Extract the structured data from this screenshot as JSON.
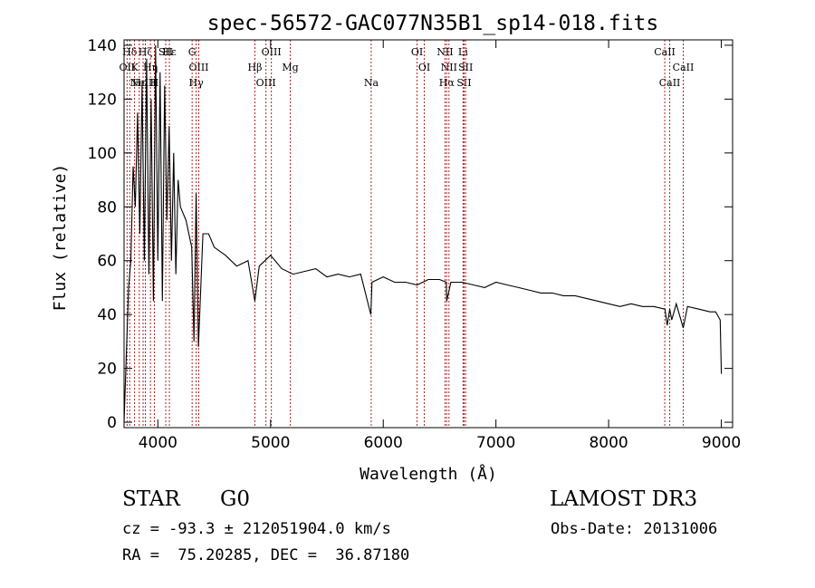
{
  "chart_data": {
    "type": "line",
    "title": "spec-56572-GAC077N35B1_sp14-018.fits",
    "xlabel": "Wavelength (Å)",
    "ylabel": "Flux (relative)",
    "xlim": [
      3700,
      9100
    ],
    "ylim": [
      -2,
      142
    ],
    "xticks": [
      4000,
      5000,
      6000,
      7000,
      8000,
      9000
    ],
    "yticks": [
      0,
      20,
      40,
      60,
      80,
      100,
      120,
      140
    ],
    "grid": false,
    "series": [
      {
        "name": "flux",
        "x": [
          3700,
          3720,
          3740,
          3760,
          3780,
          3800,
          3820,
          3840,
          3860,
          3880,
          3900,
          3920,
          3940,
          3960,
          3980,
          4000,
          4020,
          4040,
          4060,
          4080,
          4100,
          4120,
          4140,
          4160,
          4180,
          4200,
          4250,
          4300,
          4320,
          4340,
          4360,
          4400,
          4450,
          4500,
          4600,
          4700,
          4800,
          4860,
          4900,
          5000,
          5100,
          5200,
          5300,
          5400,
          5500,
          5600,
          5700,
          5800,
          5890,
          5900,
          6000,
          6100,
          6200,
          6300,
          6400,
          6500,
          6560,
          6563,
          6600,
          6700,
          6800,
          6900,
          7000,
          7100,
          7200,
          7300,
          7400,
          7500,
          7600,
          7700,
          7800,
          7900,
          8000,
          8100,
          8200,
          8300,
          8400,
          8500,
          8520,
          8542,
          8560,
          8600,
          8662,
          8700,
          8800,
          8900,
          8950,
          8990,
          9000
        ],
        "values": [
          0,
          25,
          50,
          60,
          95,
          80,
          115,
          70,
          125,
          60,
          135,
          55,
          120,
          45,
          140,
          60,
          130,
          45,
          125,
          75,
          110,
          60,
          100,
          55,
          90,
          80,
          75,
          65,
          30,
          85,
          28,
          70,
          70,
          65,
          62,
          58,
          60,
          45,
          58,
          62,
          57,
          55,
          56,
          57,
          54,
          55,
          54,
          55,
          40,
          52,
          54,
          52,
          52,
          51,
          53,
          53,
          52,
          45,
          52,
          52,
          51,
          50,
          52,
          51,
          50,
          49,
          48,
          48,
          47,
          47,
          46,
          45,
          44,
          43,
          44,
          43,
          43,
          42,
          36,
          42,
          38,
          44,
          35,
          43,
          42,
          41,
          41,
          38,
          18
        ]
      }
    ],
    "lines": [
      {
        "label": "Hδ",
        "x": 3750
      },
      {
        "label": "K",
        "x": 3793
      },
      {
        "label": "Hε",
        "x": 3835
      },
      {
        "label": "Hζ",
        "x": 3889
      },
      {
        "label": "Hη",
        "x": 3934
      },
      {
        "label": "H",
        "x": 3969
      },
      {
        "label": "Hε",
        "x": 4102
      },
      {
        "label": "OII",
        "x": 3727
      },
      {
        "label": "NeIII",
        "x": 3869
      },
      {
        "label": "SII",
        "x": 4070
      },
      {
        "label": "OIII",
        "x": 4363
      },
      {
        "label": "Hγ",
        "x": 4340
      },
      {
        "label": "G",
        "x": 4304
      },
      {
        "label": "Hβ",
        "x": 4861
      },
      {
        "label": "OIII",
        "x": 4959
      },
      {
        "label": "OIII",
        "x": 5007
      },
      {
        "label": "Mg",
        "x": 5175
      },
      {
        "label": "Na",
        "x": 5893
      },
      {
        "label": "OI",
        "x": 6300
      },
      {
        "label": "OI",
        "x": 6364
      },
      {
        "label": "Hα",
        "x": 6563
      },
      {
        "label": "NII",
        "x": 6548
      },
      {
        "label": "NII",
        "x": 6583
      },
      {
        "label": "SII",
        "x": 6717
      },
      {
        "label": "Li",
        "x": 6708
      },
      {
        "label": "SII",
        "x": 6731
      },
      {
        "label": "CaII",
        "x": 8542
      },
      {
        "label": "CaII",
        "x": 8498
      },
      {
        "label": "CaII",
        "x": 8662
      }
    ]
  },
  "info": {
    "object_class": "STAR",
    "subclass": "G0",
    "survey": "LAMOST DR3",
    "cz_line": "cz = -93.3 ± 212051904.0 km/s",
    "obs_date": "Obs-Date: 20131006",
    "radec_line": "RA =  75.20285, DEC =  36.87180"
  }
}
